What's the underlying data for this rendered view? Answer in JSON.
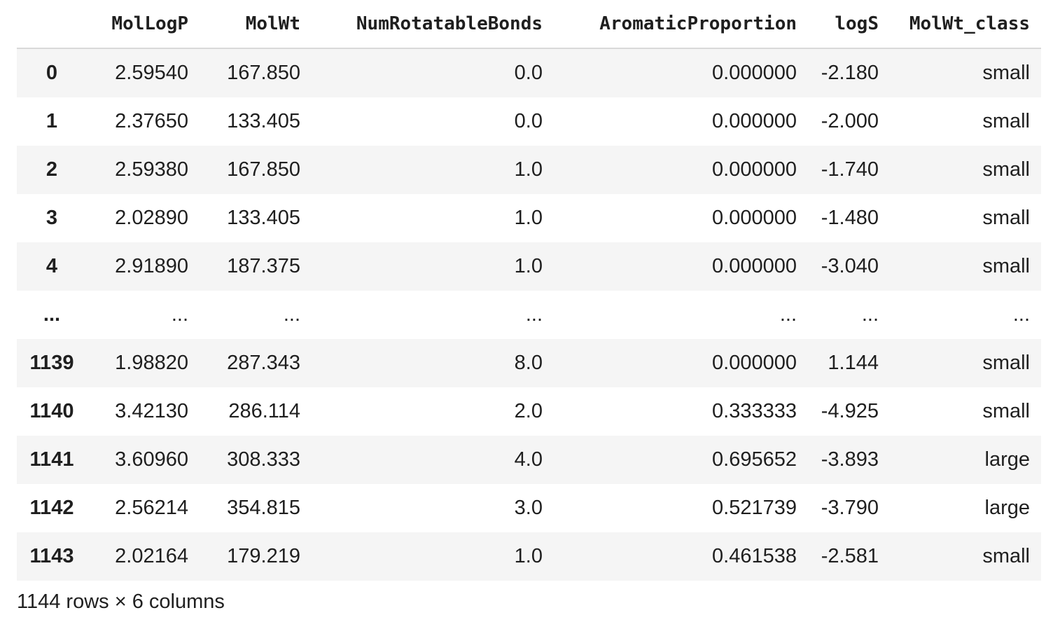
{
  "table": {
    "columns": [
      "MolLogP",
      "MolWt",
      "NumRotatableBonds",
      "AromaticProportion",
      "logS",
      "MolWt_class"
    ],
    "rows": [
      {
        "index": "0",
        "cells": [
          "2.59540",
          "167.850",
          "0.0",
          "0.000000",
          "-2.180",
          "small"
        ]
      },
      {
        "index": "1",
        "cells": [
          "2.37650",
          "133.405",
          "0.0",
          "0.000000",
          "-2.000",
          "small"
        ]
      },
      {
        "index": "2",
        "cells": [
          "2.59380",
          "167.850",
          "1.0",
          "0.000000",
          "-1.740",
          "small"
        ]
      },
      {
        "index": "3",
        "cells": [
          "2.02890",
          "133.405",
          "1.0",
          "0.000000",
          "-1.480",
          "small"
        ]
      },
      {
        "index": "4",
        "cells": [
          "2.91890",
          "187.375",
          "1.0",
          "0.000000",
          "-3.040",
          "small"
        ]
      },
      {
        "index": "...",
        "cells": [
          "...",
          "...",
          "...",
          "...",
          "...",
          "..."
        ]
      },
      {
        "index": "1139",
        "cells": [
          "1.98820",
          "287.343",
          "8.0",
          "0.000000",
          "1.144",
          "small"
        ]
      },
      {
        "index": "1140",
        "cells": [
          "3.42130",
          "286.114",
          "2.0",
          "0.333333",
          "-4.925",
          "small"
        ]
      },
      {
        "index": "1141",
        "cells": [
          "3.60960",
          "308.333",
          "4.0",
          "0.695652",
          "-3.893",
          "large"
        ]
      },
      {
        "index": "1142",
        "cells": [
          "2.56214",
          "354.815",
          "3.0",
          "0.521739",
          "-3.790",
          "large"
        ]
      },
      {
        "index": "1143",
        "cells": [
          "2.02164",
          "179.219",
          "1.0",
          "0.461538",
          "-2.581",
          "small"
        ]
      }
    ]
  },
  "footer": {
    "shape_text": "1144 rows × 6 columns"
  }
}
